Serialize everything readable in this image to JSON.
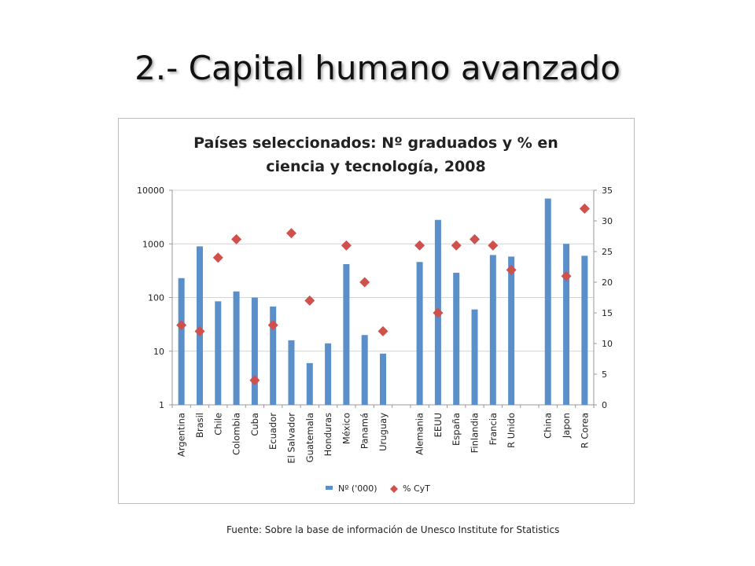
{
  "slide": {
    "title": "2.- Capital humano avanzado",
    "source": "Fuente: Sobre la base de información de Unesco Institute for Statistics"
  },
  "chart_data": {
    "type": "bar",
    "title": "Países seleccionados: Nº graduados y % en ciencia y tecnología, 2008",
    "title_lines": [
      "Países seleccionados: Nº graduados y % en",
      "ciencia y tecnología, 2008"
    ],
    "categories": [
      "Argentina",
      "Brasil",
      "Chile",
      "Colombia",
      "Cuba",
      "Ecuador",
      "El Salvador",
      "Guatemala",
      "Honduras",
      "México",
      "Panamá",
      "Uruguay",
      "",
      "Alemania",
      "EEUU",
      "España",
      "Finlandia",
      "Francia",
      "R Unido",
      "",
      "China",
      "Japon",
      "R Corea"
    ],
    "y_left": {
      "scale": "log",
      "ylim": [
        1,
        10000
      ],
      "ticks": [
        "1",
        "10",
        "100",
        "1000",
        "10000"
      ]
    },
    "y_right": {
      "scale": "linear",
      "ylim": [
        0,
        35
      ],
      "ticks": [
        "0",
        "5",
        "10",
        "15",
        "20",
        "25",
        "30",
        "35"
      ]
    },
    "grid": true,
    "legend": "bottom",
    "series": [
      {
        "name": "Nº ('000)",
        "type": "bar",
        "axis": "left",
        "color": "#5b8fc9",
        "values": [
          230,
          900,
          85,
          130,
          100,
          68,
          16,
          6,
          14,
          420,
          20,
          9,
          null,
          460,
          2800,
          290,
          60,
          620,
          580,
          null,
          7000,
          1000,
          600
        ]
      },
      {
        "name": "% CyT",
        "type": "scatter",
        "axis": "right",
        "color": "#d0504b",
        "values": [
          13,
          12,
          24,
          27,
          4,
          13,
          28,
          17,
          null,
          26,
          20,
          12,
          null,
          26,
          15,
          26,
          27,
          26,
          22,
          null,
          null,
          21,
          32
        ]
      }
    ]
  }
}
